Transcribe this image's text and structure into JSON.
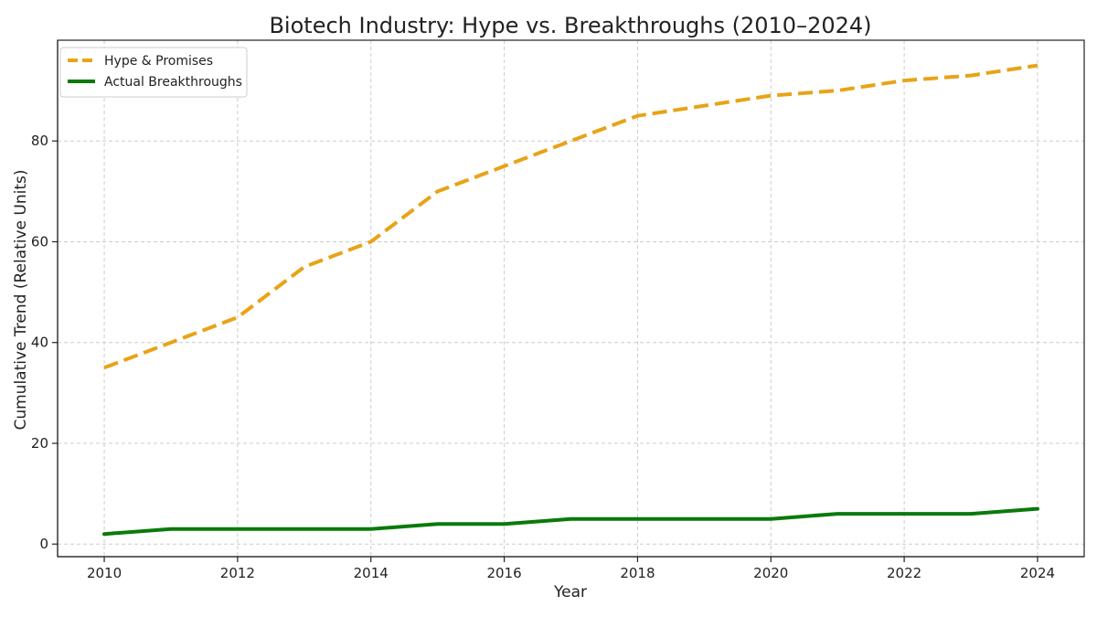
{
  "chart_data": {
    "type": "line",
    "title": "Biotech Industry: Hype vs. Breakthroughs (2010–2024)",
    "xlabel": "Year",
    "ylabel": "Cumulative Trend (Relative Units)",
    "x": [
      2010,
      2011,
      2012,
      2013,
      2014,
      2015,
      2016,
      2017,
      2018,
      2019,
      2020,
      2021,
      2022,
      2023,
      2024
    ],
    "xticks": [
      2010,
      2012,
      2014,
      2016,
      2018,
      2020,
      2022,
      2024
    ],
    "yticks": [
      0,
      20,
      40,
      60,
      80
    ],
    "xlim": [
      2009.3,
      2024.7
    ],
    "ylim": [
      -2.5,
      100
    ],
    "grid": true,
    "legend_position": "top-left",
    "series": [
      {
        "name": "Hype & Promises",
        "color": "#E8A317",
        "style": "dashed",
        "values": [
          35,
          40,
          45,
          55,
          60,
          70,
          75,
          80,
          85,
          87,
          89,
          90,
          92,
          93,
          95
        ]
      },
      {
        "name": "Actual Breakthroughs",
        "color": "#0A7A0A",
        "style": "solid",
        "values": [
          2,
          3,
          3,
          3,
          3,
          4,
          4,
          5,
          5,
          5,
          5,
          6,
          6,
          6,
          7
        ]
      }
    ]
  }
}
